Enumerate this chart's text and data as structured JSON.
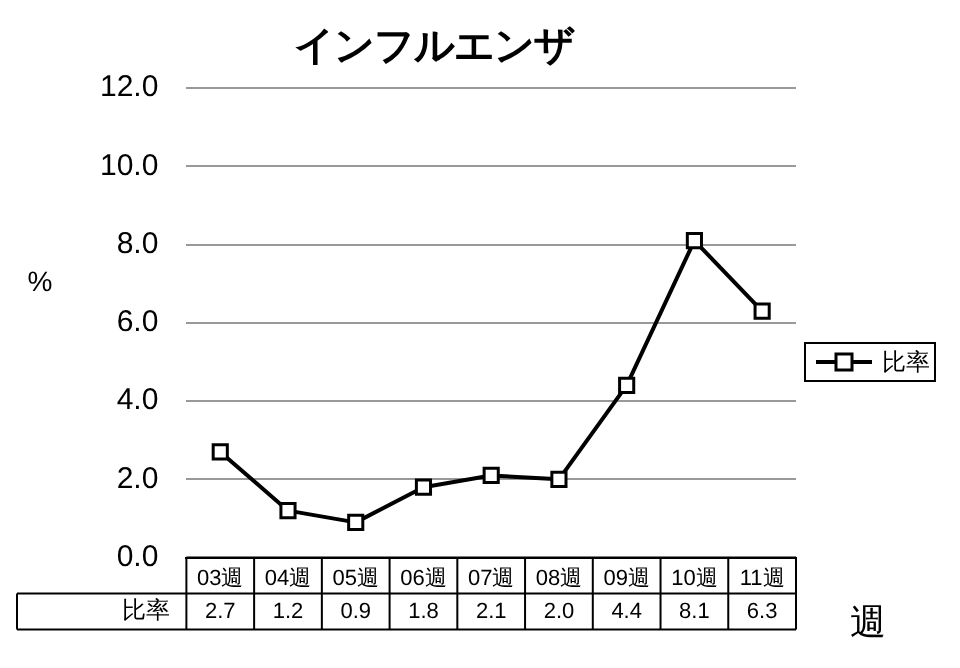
{
  "chart_data": {
    "type": "line",
    "title": "インフルエンザ",
    "ylabel": "%",
    "xlabel": "週",
    "categories": [
      "03週",
      "04週",
      "05週",
      "06週",
      "07週",
      "08週",
      "09週",
      "10週",
      "11週"
    ],
    "series": [
      {
        "name": "比率",
        "color": "#000000",
        "values": [
          2.7,
          1.2,
          0.9,
          1.8,
          2.1,
          2.0,
          4.4,
          8.1,
          6.3
        ],
        "value_labels": [
          "2.7",
          "1.2",
          "0.9",
          "1.8",
          "2.1",
          "2.0",
          "4.4",
          "8.1",
          "6.3"
        ]
      }
    ],
    "ylim": [
      0,
      12
    ],
    "yticks": [
      {
        "value": 0,
        "label": "0.0"
      },
      {
        "value": 2,
        "label": "2.0"
      },
      {
        "value": 4,
        "label": "4.0"
      },
      {
        "value": 6,
        "label": "6.0"
      },
      {
        "value": 8,
        "label": "8.0"
      },
      {
        "value": 10,
        "label": "10.0"
      },
      {
        "value": 12,
        "label": "12.0"
      }
    ],
    "grid": "y",
    "legend": "right",
    "marker": "square",
    "line_style": "solid"
  }
}
